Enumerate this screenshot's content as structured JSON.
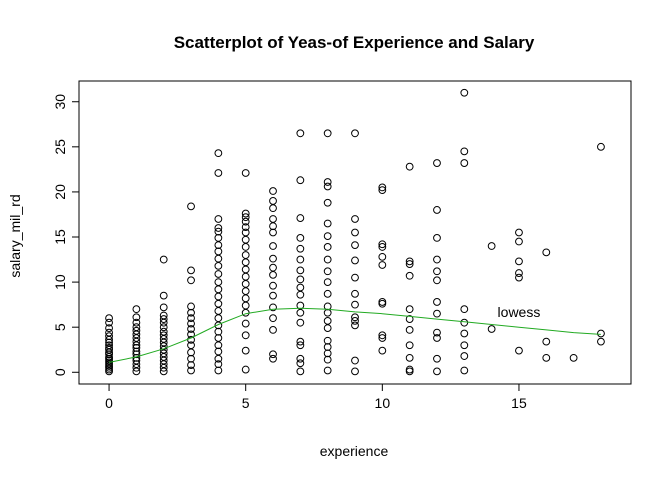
{
  "chart_data": {
    "type": "scatter",
    "title": "Scatterplot of Yeas-of Experience and Salary",
    "xlabel": "experience",
    "ylabel": "salary_mil_rd",
    "xlim": [
      -1.1,
      19.1
    ],
    "ylim": [
      -1.3,
      32.3
    ],
    "x_ticks": [
      0,
      5,
      10,
      15
    ],
    "y_ticks": [
      0,
      5,
      10,
      15,
      20,
      25,
      30
    ],
    "grid": false,
    "series": [
      {
        "points": [
          [
            0,
            0.1
          ],
          [
            0,
            0.3
          ],
          [
            0,
            0.5
          ],
          [
            0,
            0.7
          ],
          [
            0,
            0.9
          ],
          [
            0,
            1.1
          ],
          [
            0,
            1.3
          ],
          [
            0,
            1.5
          ],
          [
            0,
            1.7
          ],
          [
            0,
            2.0
          ],
          [
            0,
            2.2
          ],
          [
            0,
            2.5
          ],
          [
            0,
            2.7
          ],
          [
            0,
            3.0
          ],
          [
            0,
            3.3
          ],
          [
            0,
            3.6
          ],
          [
            0,
            4.0
          ],
          [
            0,
            4.4
          ],
          [
            0,
            4.9
          ],
          [
            0,
            5.5
          ],
          [
            0,
            6.0
          ],
          [
            1,
            0.1
          ],
          [
            1,
            0.5
          ],
          [
            1,
            0.9
          ],
          [
            1,
            1.3
          ],
          [
            1,
            1.6
          ],
          [
            1,
            2.0
          ],
          [
            1,
            2.3
          ],
          [
            1,
            2.7
          ],
          [
            1,
            3.0
          ],
          [
            1,
            3.4
          ],
          [
            1,
            3.8
          ],
          [
            1,
            4.2
          ],
          [
            1,
            4.6
          ],
          [
            1,
            5.0
          ],
          [
            1,
            5.5
          ],
          [
            1,
            6.1
          ],
          [
            1,
            7.0
          ],
          [
            2,
            0.1
          ],
          [
            2,
            0.5
          ],
          [
            2,
            0.9
          ],
          [
            2,
            1.3
          ],
          [
            2,
            1.7
          ],
          [
            2,
            2.1
          ],
          [
            2,
            2.5
          ],
          [
            2,
            2.9
          ],
          [
            2,
            3.3
          ],
          [
            2,
            3.7
          ],
          [
            2,
            4.1
          ],
          [
            2,
            4.5
          ],
          [
            2,
            5.0
          ],
          [
            2,
            5.5
          ],
          [
            2,
            5.9
          ],
          [
            2,
            6.3
          ],
          [
            2,
            7.2
          ],
          [
            2,
            8.5
          ],
          [
            2,
            12.5
          ],
          [
            3,
            0.2
          ],
          [
            3,
            0.8
          ],
          [
            3,
            1.5
          ],
          [
            3,
            2.2
          ],
          [
            3,
            3.0
          ],
          [
            3,
            3.6
          ],
          [
            3,
            4.2
          ],
          [
            3,
            4.8
          ],
          [
            3,
            5.4
          ],
          [
            3,
            6.0
          ],
          [
            3,
            6.6
          ],
          [
            3,
            7.3
          ],
          [
            3,
            10.2
          ],
          [
            3,
            11.3
          ],
          [
            3,
            18.4
          ],
          [
            4,
            0.2
          ],
          [
            4,
            0.9
          ],
          [
            4,
            1.5
          ],
          [
            4,
            2.3
          ],
          [
            4,
            3.0
          ],
          [
            4,
            3.8
          ],
          [
            4,
            4.5
          ],
          [
            4,
            5.2
          ],
          [
            4,
            6.0
          ],
          [
            4,
            6.8
          ],
          [
            4,
            7.6
          ],
          [
            4,
            8.4
          ],
          [
            4,
            9.2
          ],
          [
            4,
            10.0
          ],
          [
            4,
            10.9
          ],
          [
            4,
            11.8
          ],
          [
            4,
            12.6
          ],
          [
            4,
            13.4
          ],
          [
            4,
            14.1
          ],
          [
            4,
            14.9
          ],
          [
            4,
            15.6
          ],
          [
            4,
            16.0
          ],
          [
            4,
            17.0
          ],
          [
            4,
            22.1
          ],
          [
            4,
            24.3
          ],
          [
            5,
            0.3
          ],
          [
            5,
            2.4
          ],
          [
            5,
            4.1
          ],
          [
            5,
            5.4
          ],
          [
            5,
            6.6
          ],
          [
            5,
            7.4
          ],
          [
            5,
            8.2
          ],
          [
            5,
            9.0
          ],
          [
            5,
            9.8
          ],
          [
            5,
            10.6
          ],
          [
            5,
            11.4
          ],
          [
            5,
            12.2
          ],
          [
            5,
            13.0
          ],
          [
            5,
            13.9
          ],
          [
            5,
            14.7
          ],
          [
            5,
            15.5
          ],
          [
            5,
            16.1
          ],
          [
            5,
            16.7
          ],
          [
            5,
            17.2
          ],
          [
            5,
            17.6
          ],
          [
            5,
            22.1
          ],
          [
            6,
            1.5
          ],
          [
            6,
            2.0
          ],
          [
            6,
            4.7
          ],
          [
            6,
            6.0
          ],
          [
            6,
            7.2
          ],
          [
            6,
            8.5
          ],
          [
            6,
            9.6
          ],
          [
            6,
            10.8
          ],
          [
            6,
            11.6
          ],
          [
            6,
            12.6
          ],
          [
            6,
            14.0
          ],
          [
            6,
            15.5
          ],
          [
            6,
            16.2
          ],
          [
            6,
            17.0
          ],
          [
            6,
            18.2
          ],
          [
            6,
            19.0
          ],
          [
            6,
            20.1
          ],
          [
            7,
            0.1
          ],
          [
            7,
            1.0
          ],
          [
            7,
            1.5
          ],
          [
            7,
            3.0
          ],
          [
            7,
            3.4
          ],
          [
            7,
            5.5
          ],
          [
            7,
            6.6
          ],
          [
            7,
            7.4
          ],
          [
            7,
            8.6
          ],
          [
            7,
            9.4
          ],
          [
            7,
            10.3
          ],
          [
            7,
            11.3
          ],
          [
            7,
            12.5
          ],
          [
            7,
            13.7
          ],
          [
            7,
            14.9
          ],
          [
            7,
            17.1
          ],
          [
            7,
            21.3
          ],
          [
            7,
            26.5
          ],
          [
            8,
            0.2
          ],
          [
            8,
            1.4
          ],
          [
            8,
            2.1
          ],
          [
            8,
            2.8
          ],
          [
            8,
            3.5
          ],
          [
            8,
            4.9
          ],
          [
            8,
            5.7
          ],
          [
            8,
            6.6
          ],
          [
            8,
            7.3
          ],
          [
            8,
            8.7
          ],
          [
            8,
            10.0
          ],
          [
            8,
            11.2
          ],
          [
            8,
            12.5
          ],
          [
            8,
            13.9
          ],
          [
            8,
            15.1
          ],
          [
            8,
            16.5
          ],
          [
            8,
            18.8
          ],
          [
            8,
            20.6
          ],
          [
            8,
            21.1
          ],
          [
            8,
            26.5
          ],
          [
            9,
            0.1
          ],
          [
            9,
            1.3
          ],
          [
            9,
            5.2
          ],
          [
            9,
            5.7
          ],
          [
            9,
            6.1
          ],
          [
            9,
            7.5
          ],
          [
            9,
            8.7
          ],
          [
            9,
            10.5
          ],
          [
            9,
            12.4
          ],
          [
            9,
            14.1
          ],
          [
            9,
            15.5
          ],
          [
            9,
            17.0
          ],
          [
            9,
            26.5
          ],
          [
            10,
            2.4
          ],
          [
            10,
            3.8
          ],
          [
            10,
            4.1
          ],
          [
            10,
            7.6
          ],
          [
            10,
            7.8
          ],
          [
            10,
            11.9
          ],
          [
            10,
            12.8
          ],
          [
            10,
            13.9
          ],
          [
            10,
            14.2
          ],
          [
            10,
            20.2
          ],
          [
            10,
            20.5
          ],
          [
            11,
            0.1
          ],
          [
            11,
            0.3
          ],
          [
            11,
            1.6
          ],
          [
            11,
            3.0
          ],
          [
            11,
            4.7
          ],
          [
            11,
            5.9
          ],
          [
            11,
            7.0
          ],
          [
            11,
            10.7
          ],
          [
            11,
            12.0
          ],
          [
            11,
            12.3
          ],
          [
            11,
            22.8
          ],
          [
            12,
            0.1
          ],
          [
            12,
            1.5
          ],
          [
            12,
            3.8
          ],
          [
            12,
            4.4
          ],
          [
            12,
            6.5
          ],
          [
            12,
            7.8
          ],
          [
            12,
            10.2
          ],
          [
            12,
            11.2
          ],
          [
            12,
            12.5
          ],
          [
            12,
            14.9
          ],
          [
            12,
            18.0
          ],
          [
            12,
            23.2
          ],
          [
            13,
            0.2
          ],
          [
            13,
            1.8
          ],
          [
            13,
            3.0
          ],
          [
            13,
            4.3
          ],
          [
            13,
            5.5
          ],
          [
            13,
            7.0
          ],
          [
            13,
            23.2
          ],
          [
            13,
            24.5
          ],
          [
            13,
            31.0
          ],
          [
            14,
            4.8
          ],
          [
            14,
            14.0
          ],
          [
            15,
            2.4
          ],
          [
            15,
            10.5
          ],
          [
            15,
            11.0
          ],
          [
            15,
            12.3
          ],
          [
            15,
            14.5
          ],
          [
            15,
            15.5
          ],
          [
            16,
            1.6
          ],
          [
            16,
            3.4
          ],
          [
            16,
            13.3
          ],
          [
            17,
            1.6
          ],
          [
            18,
            3.4
          ],
          [
            18,
            4.3
          ],
          [
            18,
            25.0
          ]
        ]
      }
    ],
    "lowess": {
      "label": "lowess",
      "color": "#22aa22",
      "points": [
        [
          0,
          1.1
        ],
        [
          1,
          1.7
        ],
        [
          2,
          2.6
        ],
        [
          3,
          3.8
        ],
        [
          4,
          5.3
        ],
        [
          5,
          6.5
        ],
        [
          6,
          7.0
        ],
        [
          7,
          7.1
        ],
        [
          8,
          7.0
        ],
        [
          9,
          6.7
        ],
        [
          10,
          6.5
        ],
        [
          11,
          6.2
        ],
        [
          12,
          5.9
        ],
        [
          13,
          5.6
        ],
        [
          14,
          5.3
        ],
        [
          15,
          5.0
        ],
        [
          16,
          4.7
        ],
        [
          17,
          4.4
        ],
        [
          18,
          4.2
        ]
      ],
      "label_at": [
        15,
        6.7
      ]
    }
  }
}
